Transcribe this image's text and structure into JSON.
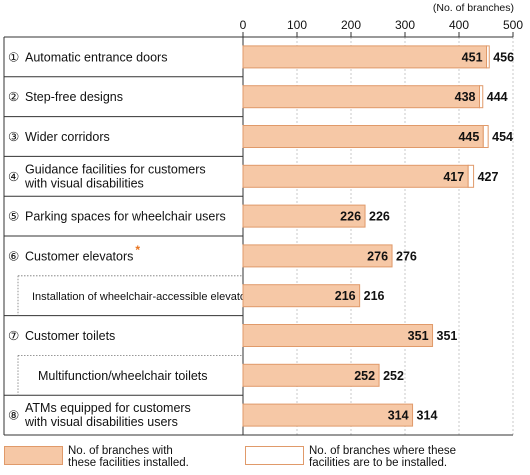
{
  "chart_data": {
    "type": "bar",
    "unit_label": "(No. of branches)",
    "xlim": [
      0,
      500
    ],
    "ticks": [
      "0",
      "100",
      "200",
      "300",
      "400",
      "500"
    ],
    "categories": [
      {
        "marker": "①",
        "lines": [
          "Automatic entrance doors"
        ],
        "installed": 451,
        "planned": 456
      },
      {
        "marker": "②",
        "lines": [
          "Step-free designs"
        ],
        "installed": 438,
        "planned": 444
      },
      {
        "marker": "③",
        "lines": [
          "Wider corridors"
        ],
        "installed": 445,
        "planned": 454
      },
      {
        "marker": "④",
        "lines": [
          "Guidance facilities for customers",
          "with visual disabilities"
        ],
        "installed": 417,
        "planned": 427
      },
      {
        "marker": "⑤",
        "lines": [
          "Parking spaces for wheelchair users"
        ],
        "installed": 226,
        "planned": 226
      },
      {
        "marker": "⑥",
        "lines": [
          "Customer elevators"
        ],
        "star": "*",
        "installed": 276,
        "planned": 276
      },
      {
        "marker": "",
        "sub": true,
        "lines": [
          "Installation of wheelchair-accessible elevators"
        ],
        "star": "*",
        "installed": 216,
        "planned": 216
      },
      {
        "marker": "⑦",
        "lines": [
          "Customer toilets"
        ],
        "installed": 351,
        "planned": 351
      },
      {
        "marker": "",
        "sub": true,
        "lines": [
          "Multifunction/wheelchair toilets"
        ],
        "installed": 252,
        "planned": 252
      },
      {
        "marker": "⑧",
        "lines": [
          "ATMs equipped for customers",
          "with visual disabilities users"
        ],
        "installed": 314,
        "planned": 314
      }
    ],
    "series": [
      {
        "name": "No. of branches with these facilities installed.",
        "key": "installed",
        "color": "#f6c8a6"
      },
      {
        "name": "No. of branches where these facilities are to be installed.",
        "key": "planned",
        "color": "#ffffff"
      }
    ],
    "bar_border_color": "#e09a6a"
  },
  "legend": {
    "installed_line1": "No. of branches with",
    "installed_line2": "these facilities installed.",
    "planned_line1": "No. of branches where these",
    "planned_line2": "facilities are to be installed."
  }
}
